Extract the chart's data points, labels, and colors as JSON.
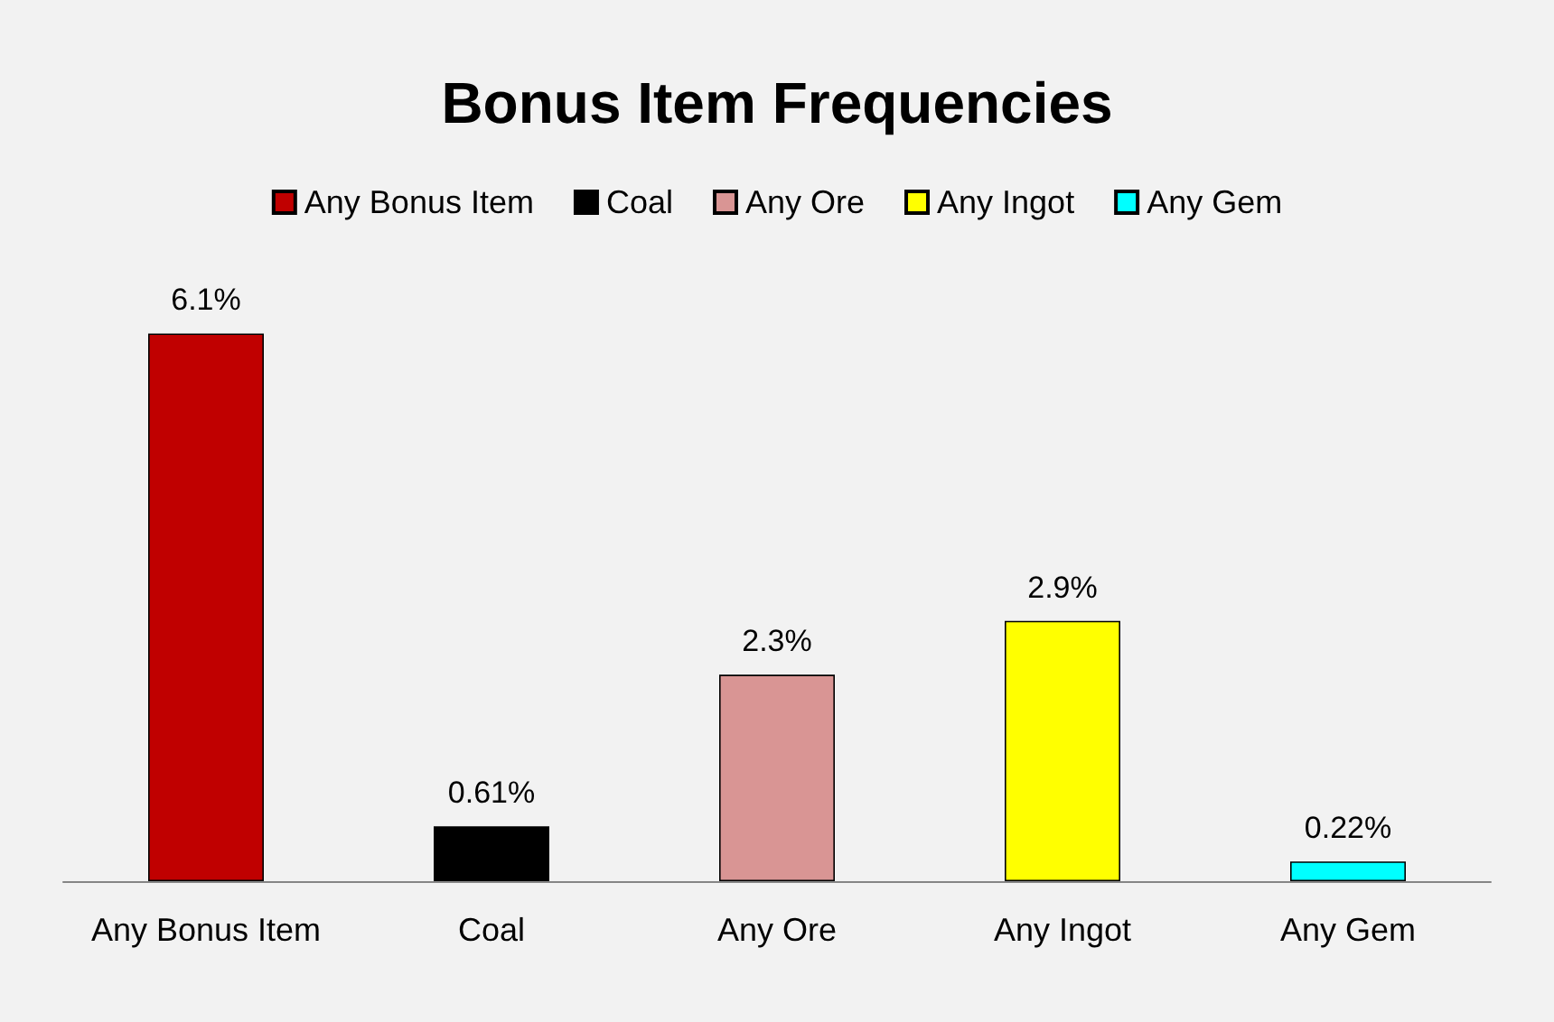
{
  "chart_data": {
    "type": "bar",
    "title": "Bonus Item Frequencies",
    "categories": [
      "Any Bonus Item",
      "Coal",
      "Any Ore",
      "Any Ingot",
      "Any Gem"
    ],
    "stacked": true,
    "series": [
      {
        "name": "Any Bonus Item",
        "color": "#c00000",
        "values": [
          6.1,
          null,
          null,
          null,
          null
        ],
        "value_labels": [
          "6.1%",
          null,
          null,
          null,
          null
        ]
      },
      {
        "name": "Coal",
        "color": "#000000",
        "values": [
          null,
          0.61,
          null,
          null,
          null
        ],
        "value_labels": [
          null,
          "0.61%",
          null,
          null,
          null
        ]
      },
      {
        "name": "Any Ore",
        "color": "#d99594",
        "values": [
          null,
          null,
          2.3,
          null,
          null
        ],
        "value_labels": [
          null,
          null,
          "2.3%",
          null,
          null
        ]
      },
      {
        "name": "Any Ingot",
        "color": "#ffff00",
        "values": [
          null,
          null,
          null,
          2.9,
          null
        ],
        "value_labels": [
          null,
          null,
          null,
          "2.9%",
          null
        ]
      },
      {
        "name": "Any Gem",
        "color": "#00ffff",
        "values": [
          null,
          null,
          null,
          null,
          0.22
        ],
        "value_labels": [
          null,
          null,
          null,
          null,
          "0.22%"
        ]
      }
    ],
    "legend": "top"
  }
}
